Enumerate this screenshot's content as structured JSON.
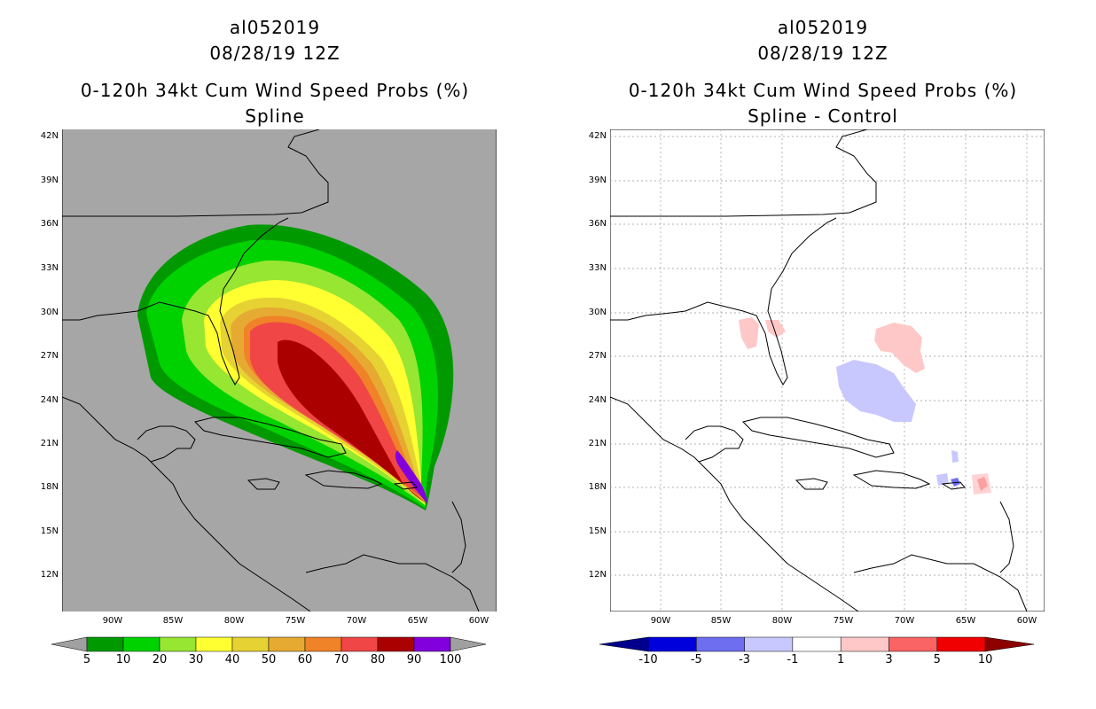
{
  "left": {
    "storm_id": "al052019",
    "datetime": "08/28/19 12Z",
    "product": "0-120h 34kt Cum Wind Speed Probs (%)",
    "subtitle": "Spline"
  },
  "right": {
    "storm_id": "al052019",
    "datetime": "08/28/19 12Z",
    "product": "0-120h 34kt Cum Wind Speed Probs (%)",
    "subtitle": "Spline - Control"
  },
  "lat_labels": [
    "42N",
    "39N",
    "36N",
    "33N",
    "30N",
    "27N",
    "24N",
    "21N",
    "18N",
    "15N",
    "12N"
  ],
  "lon_labels": [
    "90W",
    "85W",
    "80W",
    "75W",
    "70W",
    "65W",
    "60W"
  ],
  "left_colorbar": {
    "labels": [
      "5",
      "10",
      "20",
      "30",
      "40",
      "50",
      "60",
      "70",
      "80",
      "90",
      "100"
    ],
    "colors": [
      "#009a00",
      "#00d200",
      "#96e632",
      "#ffff32",
      "#e6d232",
      "#e6aa32",
      "#f08228",
      "#f04646",
      "#aa0000",
      "#8200dc"
    ],
    "end_color": "#a0a0a0"
  },
  "right_colorbar": {
    "labels": [
      "-10",
      "-5",
      "-3",
      "-1",
      "1",
      "3",
      "5",
      "10"
    ],
    "colors": [
      "#0000dc",
      "#6e6ef0",
      "#c8c8ff",
      "#ffffff",
      "#ffc8c8",
      "#fa6464",
      "#f00000"
    ],
    "low_end_color": "#00008c",
    "high_end_color": "#8c0000"
  },
  "colors": {
    "map_background": "#a6a6a6",
    "land_outline": "#000000"
  }
}
